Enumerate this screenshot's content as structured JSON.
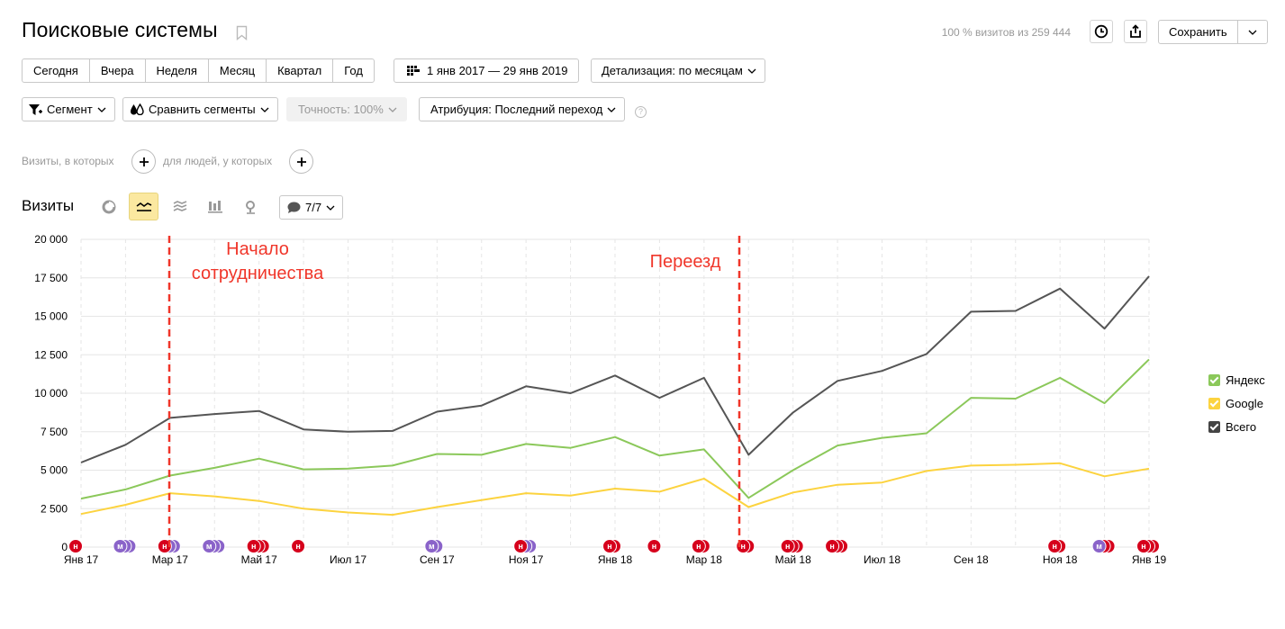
{
  "header": {
    "title": "Поисковые системы",
    "visits_share": "100 % визитов из 259 444",
    "save_label": "Сохранить"
  },
  "periods": [
    "Сегодня",
    "Вчера",
    "Неделя",
    "Месяц",
    "Квартал",
    "Год"
  ],
  "date_range": "1 янв 2017 — 29 янв 2019",
  "detail": "Детализация: по месяцам",
  "toolbar": {
    "segment": "Сегмент",
    "compare": "Сравнить сегменты",
    "accuracy": "Точность: 100%",
    "attribution": "Атрибуция: Последний переход"
  },
  "filters": {
    "visits_label": "Визиты, в которых",
    "people_label": "для людей, у которых"
  },
  "chart_header": {
    "title": "Визиты",
    "notes": "7/7"
  },
  "annotations": [
    "Начало сотрудничества",
    "Переезд"
  ],
  "colors": {
    "yandex": "#8bc85a",
    "google": "#fcd33f",
    "total": "#555555",
    "annot": "#f0362a"
  },
  "chart_data": {
    "type": "line",
    "x": [
      "Янв 17",
      "Фев 17",
      "Мар 17",
      "Апр 17",
      "Май 17",
      "Июн 17",
      "Июл 17",
      "Авг 17",
      "Сен 17",
      "Окт 17",
      "Ноя 17",
      "Дек 17",
      "Янв 18",
      "Фев 18",
      "Мар 18",
      "Апр 18",
      "Май 18",
      "Июн 18",
      "Июл 18",
      "Авг 18",
      "Сен 18",
      "Окт 18",
      "Ноя 18",
      "Дек 18",
      "Янв 19"
    ],
    "x_tick_labels": [
      "Янв 17",
      "Мар 17",
      "Май 17",
      "Июл 17",
      "Сен 17",
      "Ноя 17",
      "Янв 18",
      "Мар 18",
      "Май 18",
      "Июл 18",
      "Сен 18",
      "Ноя 18",
      "Янв 19"
    ],
    "y_tick_labels": [
      "0",
      "2 500",
      "5 000",
      "7 500",
      "10 000",
      "12 500",
      "15 000",
      "17 500",
      "20 000"
    ],
    "ylim": [
      0,
      20000
    ],
    "grid": true,
    "legend_position": "right",
    "series": [
      {
        "name": "Яндекс",
        "color": "#8bc85a",
        "values": [
          3150,
          3750,
          4650,
          5150,
          5750,
          5050,
          5100,
          5300,
          6050,
          6000,
          6700,
          6450,
          7150,
          5950,
          6350,
          3200,
          5000,
          6600,
          7100,
          7400,
          9700,
          9650,
          11000,
          9350,
          12200
        ]
      },
      {
        "name": "Google",
        "color": "#fcd33f",
        "values": [
          2150,
          2750,
          3500,
          3300,
          3000,
          2500,
          2250,
          2100,
          2600,
          3050,
          3500,
          3350,
          3800,
          3600,
          4450,
          2600,
          3550,
          4050,
          4200,
          4950,
          5300,
          5350,
          5450,
          4600,
          5100
        ]
      },
      {
        "name": "Всего",
        "color": "#555555",
        "values": [
          5500,
          6650,
          8400,
          8650,
          8850,
          7650,
          7500,
          7550,
          8800,
          9200,
          10450,
          10000,
          11150,
          9700,
          11000,
          6000,
          8750,
          10800,
          11450,
          12550,
          15300,
          15350,
          16800,
          14200,
          17600
        ]
      }
    ],
    "annotations": [
      {
        "label": "Начало сотрудничества",
        "x": "Мар 17"
      },
      {
        "label": "Переезд",
        "x": "Апр 18"
      }
    ],
    "markers": [
      {
        "x": "Янв 17",
        "kinds": [
          "н"
        ]
      },
      {
        "x": "Фев 17",
        "kinds": [
          "м",
          "м",
          "м"
        ]
      },
      {
        "x": "Мар 17",
        "kinds": [
          "н",
          "м",
          "м"
        ]
      },
      {
        "x": "Апр 17",
        "kinds": [
          "м",
          "м",
          "м"
        ]
      },
      {
        "x": "Май 17",
        "kinds": [
          "н",
          "н",
          "н"
        ]
      },
      {
        "x": "Июн 17",
        "kinds": [
          "н"
        ]
      },
      {
        "x": "Сен 17",
        "kinds": [
          "м",
          "м"
        ]
      },
      {
        "x": "Ноя 17",
        "kinds": [
          "н",
          "м",
          "м"
        ]
      },
      {
        "x": "Янв 18",
        "kinds": [
          "н",
          "н"
        ]
      },
      {
        "x": "Фев 18",
        "kinds": [
          "н"
        ]
      },
      {
        "x": "Мар 18",
        "kinds": [
          "н",
          "н"
        ]
      },
      {
        "x": "Апр 18",
        "kinds": [
          "н",
          "н"
        ]
      },
      {
        "x": "Май 18",
        "kinds": [
          "н",
          "н",
          "н"
        ]
      },
      {
        "x": "Июн 18",
        "kinds": [
          "н",
          "н",
          "н"
        ]
      },
      {
        "x": "Ноя 18",
        "kinds": [
          "н",
          "н"
        ]
      },
      {
        "x": "Дек 18",
        "kinds": [
          "м",
          "н",
          "н"
        ]
      },
      {
        "x": "Янв 19",
        "kinds": [
          "н",
          "н",
          "н"
        ]
      }
    ]
  }
}
